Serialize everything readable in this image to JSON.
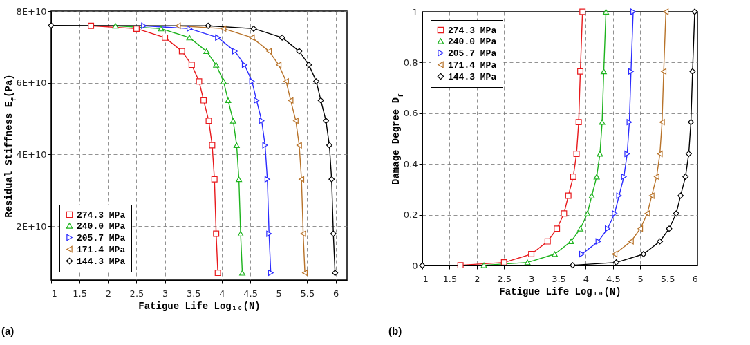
{
  "chart_data": [
    {
      "type": "line",
      "xlabel": "Fatigue Life Log₁₀(N)",
      "ylabel": "Residual Stiffness E$_{f}$(Pa)",
      "xlim": [
        1,
        6.2
      ],
      "xticks": [
        1,
        1.5,
        2,
        2.5,
        3,
        3.5,
        4,
        4.5,
        5,
        5.5,
        6
      ],
      "ylim": [
        5000000000,
        80000000000
      ],
      "yticks": [
        {
          "value": 20000000000,
          "label": "2E+10"
        },
        {
          "value": 40000000000,
          "label": "4E+10"
        },
        {
          "value": 60000000000,
          "label": "6E+10"
        },
        {
          "value": 80000000000,
          "label": "8E+10"
        }
      ],
      "grid": true,
      "line_style": "solid",
      "legend": "bottom left",
      "annotations": [
        "(a)"
      ],
      "series": [
        {
          "name": "274.3 MPa",
          "color": "#e8191c",
          "marker": "square",
          "x": [
            1.7,
            2.5,
            3.0,
            3.3,
            3.47,
            3.6,
            3.68,
            3.77,
            3.83,
            3.87,
            3.9,
            3.93
          ],
          "values": [
            75900000000,
            75100000000,
            72600000000,
            68800000000,
            65000000000,
            60400000000,
            55100000000,
            49400000000,
            42600000000,
            33100000000,
            17900000000,
            7000000000
          ]
        },
        {
          "name": "240.0 MPa",
          "color": "#1db31d",
          "marker": "triangle",
          "x": [
            2.13,
            2.93,
            3.43,
            3.73,
            3.9,
            4.03,
            4.11,
            4.2,
            4.26,
            4.3,
            4.33,
            4.36
          ],
          "values": [
            75900000000,
            75100000000,
            72600000000,
            68800000000,
            65000000000,
            60400000000,
            55100000000,
            49400000000,
            42600000000,
            33100000000,
            17900000000,
            7000000000
          ]
        },
        {
          "name": "205.7 MPa",
          "color": "#2b2bff",
          "marker": "triangle-right",
          "x": [
            2.63,
            3.43,
            3.93,
            4.23,
            4.4,
            4.53,
            4.61,
            4.7,
            4.76,
            4.8,
            4.83,
            4.86
          ],
          "values": [
            75900000000,
            75100000000,
            72600000000,
            68800000000,
            65000000000,
            60400000000,
            55100000000,
            49400000000,
            42600000000,
            33100000000,
            17900000000,
            7000000000
          ]
        },
        {
          "name": "171.4 MPa",
          "color": "#b8732a",
          "marker": "triangle-left",
          "x": [
            3.23,
            4.03,
            4.53,
            4.83,
            5.0,
            5.13,
            5.21,
            5.3,
            5.36,
            5.4,
            5.43,
            5.46
          ],
          "values": [
            75900000000,
            75100000000,
            72600000000,
            68800000000,
            65000000000,
            60400000000,
            55100000000,
            49400000000,
            42600000000,
            33100000000,
            17900000000,
            7000000000
          ]
        },
        {
          "name": "144.3 MPa",
          "color": "#000000",
          "marker": "diamond",
          "x": [
            1,
            3.76,
            4.56,
            5.06,
            5.36,
            5.53,
            5.66,
            5.74,
            5.83,
            5.89,
            5.93,
            5.96,
            5.99
          ],
          "values": [
            76000000000,
            75900000000,
            75100000000,
            72600000000,
            68800000000,
            65000000000,
            60400000000,
            55100000000,
            49400000000,
            42600000000,
            33100000000,
            17900000000,
            7000000000
          ]
        }
      ]
    },
    {
      "type": "line",
      "xlabel": "Fatigue Life Log₁₀(N)",
      "ylabel": "Damage Degree D$_{f}$",
      "xlim": [
        1,
        6.05
      ],
      "xticks": [
        1,
        1.5,
        2,
        2.5,
        3,
        3.5,
        4,
        4.5,
        5,
        5.5,
        6
      ],
      "ylim": [
        0,
        1
      ],
      "yticks": [
        0,
        0.2,
        0.4,
        0.6,
        0.8,
        1
      ],
      "grid": true,
      "line_style": "solid",
      "legend": "top left",
      "annotations": [
        "(b)"
      ],
      "series": [
        {
          "name": "274.3 MPa",
          "color": "#e8191c",
          "marker": "square",
          "x": [
            1.7,
            2.5,
            3.0,
            3.3,
            3.47,
            3.6,
            3.68,
            3.77,
            3.83,
            3.87,
            3.9,
            3.94
          ],
          "values": [
            0.001,
            0.012,
            0.045,
            0.095,
            0.145,
            0.205,
            0.275,
            0.35,
            0.44,
            0.565,
            0.765,
            1
          ]
        },
        {
          "name": "240.0 MPa",
          "color": "#1db31d",
          "marker": "triangle",
          "x": [
            2.13,
            2.93,
            3.43,
            3.73,
            3.9,
            4.03,
            4.11,
            4.2,
            4.26,
            4.3,
            4.33,
            4.37
          ],
          "values": [
            0.001,
            0.012,
            0.045,
            0.095,
            0.145,
            0.205,
            0.275,
            0.35,
            0.44,
            0.565,
            0.765,
            1
          ]
        },
        {
          "name": "205.7 MPa",
          "color": "#2b2bff",
          "marker": "triangle-right",
          "x": [
            3.93,
            4.23,
            4.4,
            4.53,
            4.61,
            4.7,
            4.76,
            4.8,
            4.83,
            4.87
          ],
          "values": [
            0.045,
            0.095,
            0.145,
            0.205,
            0.275,
            0.35,
            0.44,
            0.565,
            0.765,
            1
          ]
        },
        {
          "name": "171.4 MPa",
          "color": "#b8732a",
          "marker": "triangle-left",
          "x": [
            4.53,
            4.83,
            5.0,
            5.13,
            5.21,
            5.3,
            5.36,
            5.4,
            5.43,
            5.47
          ],
          "values": [
            0.045,
            0.095,
            0.145,
            0.205,
            0.275,
            0.35,
            0.44,
            0.565,
            0.765,
            1
          ]
        },
        {
          "name": "144.3 MPa",
          "color": "#000000",
          "marker": "diamond",
          "x": [
            1,
            3.76,
            4.56,
            5.06,
            5.36,
            5.53,
            5.66,
            5.74,
            5.83,
            5.89,
            5.93,
            5.96,
            6.0
          ],
          "values": [
            0,
            0.001,
            0.012,
            0.045,
            0.095,
            0.145,
            0.205,
            0.275,
            0.35,
            0.44,
            0.565,
            0.765,
            1
          ]
        }
      ]
    }
  ]
}
